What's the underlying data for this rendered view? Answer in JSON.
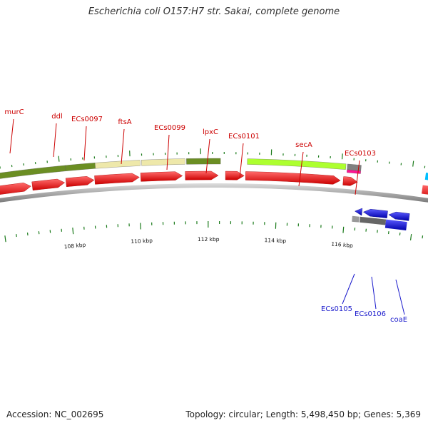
{
  "title": "Escherichia coli O157:H7 str. Sakai, complete genome",
  "footer": {
    "accession": "Accession: NC_002695",
    "summary": "Topology: circular; Length: 5,498,450 bp; Genes: 5,369"
  },
  "colors": {
    "forward_label": "#cc0000",
    "reverse_label": "#1a1acc",
    "cds_forward": "#ff0000",
    "cds_reverse": "#0000ee",
    "cog_olive": "#6b8e23",
    "cog_khaki": "#eee8aa",
    "cog_lime": "#adff2f",
    "cog_gray": "#808080",
    "trna_pink": "#ff1493",
    "cog_cyan": "#00bfff",
    "backbone": "#888888",
    "tick": "#1a7a1a"
  },
  "scale_labels": [
    "108 kbp",
    "110 kbp",
    "112 kbp",
    "114 kbp",
    "116 kbp"
  ],
  "forward_genes": [
    "murC",
    "ddl",
    "ECs0097",
    "ftsA",
    "ECs0099",
    "lpxC",
    "ECs0101",
    "secA",
    "ECs0103"
  ],
  "reverse_genes": [
    "ECs0105",
    "ECs0106",
    "coaE"
  ]
}
